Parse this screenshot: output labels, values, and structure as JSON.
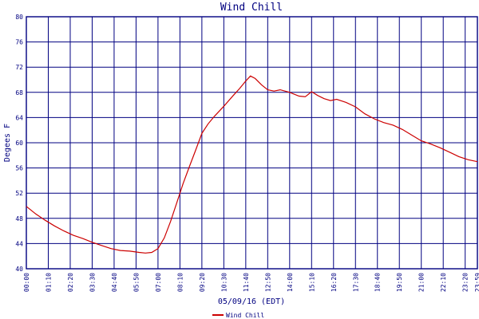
{
  "chart_data": {
    "type": "line",
    "title": "Wind Chill",
    "xlabel": "05/09/16 (EDT)",
    "ylabel": "Degees F",
    "ylim": [
      40,
      80
    ],
    "yticks": [
      "40",
      "44",
      "48",
      "52",
      "56",
      "60",
      "64",
      "68",
      "72",
      "76",
      "80"
    ],
    "xticks": [
      "00:00",
      "01:10",
      "02:20",
      "03:30",
      "04:40",
      "05:50",
      "07:00",
      "08:10",
      "09:20",
      "10:30",
      "11:40",
      "12:50",
      "14:00",
      "15:10",
      "16:20",
      "17:30",
      "18:40",
      "19:50",
      "21:00",
      "22:10",
      "23:20",
      "23:59"
    ],
    "grid": true,
    "legend_position": "bottom-center",
    "colors": {
      "axis": "#000080",
      "grid": "#000080",
      "line": "#cc0000",
      "text": "#000080"
    },
    "series": [
      {
        "name": "Wind Chill",
        "x": [
          "00:00",
          "00:30",
          "01:00",
          "01:30",
          "02:00",
          "02:30",
          "03:00",
          "03:30",
          "04:00",
          "04:30",
          "05:00",
          "05:30",
          "06:00",
          "06:20",
          "06:40",
          "07:00",
          "07:20",
          "07:40",
          "08:00",
          "08:20",
          "08:40",
          "09:00",
          "09:20",
          "09:40",
          "10:00",
          "10:30",
          "11:00",
          "11:20",
          "11:40",
          "11:55",
          "12:10",
          "12:30",
          "12:50",
          "13:10",
          "13:30",
          "14:00",
          "14:30",
          "14:50",
          "15:10",
          "15:30",
          "15:50",
          "16:10",
          "16:30",
          "17:00",
          "17:30",
          "18:00",
          "18:30",
          "19:00",
          "19:30",
          "20:00",
          "20:30",
          "21:00",
          "21:30",
          "22:00",
          "22:30",
          "23:00",
          "23:30",
          "23:59"
        ],
        "values": [
          49.9,
          48.7,
          47.7,
          46.8,
          46.0,
          45.3,
          44.8,
          44.2,
          43.7,
          43.2,
          42.9,
          42.8,
          42.6,
          42.5,
          42.6,
          43.2,
          44.9,
          47.5,
          50.5,
          53.5,
          56.2,
          58.8,
          61.5,
          63.0,
          64.2,
          65.8,
          67.5,
          68.6,
          69.8,
          70.6,
          70.2,
          69.2,
          68.4,
          68.2,
          68.4,
          68.0,
          67.4,
          67.3,
          68.1,
          67.5,
          67.0,
          66.7,
          66.9,
          66.4,
          65.7,
          64.6,
          63.8,
          63.2,
          62.8,
          62.1,
          61.2,
          60.3,
          59.8,
          59.2,
          58.5,
          57.8,
          57.3,
          57.0
        ]
      }
    ]
  }
}
